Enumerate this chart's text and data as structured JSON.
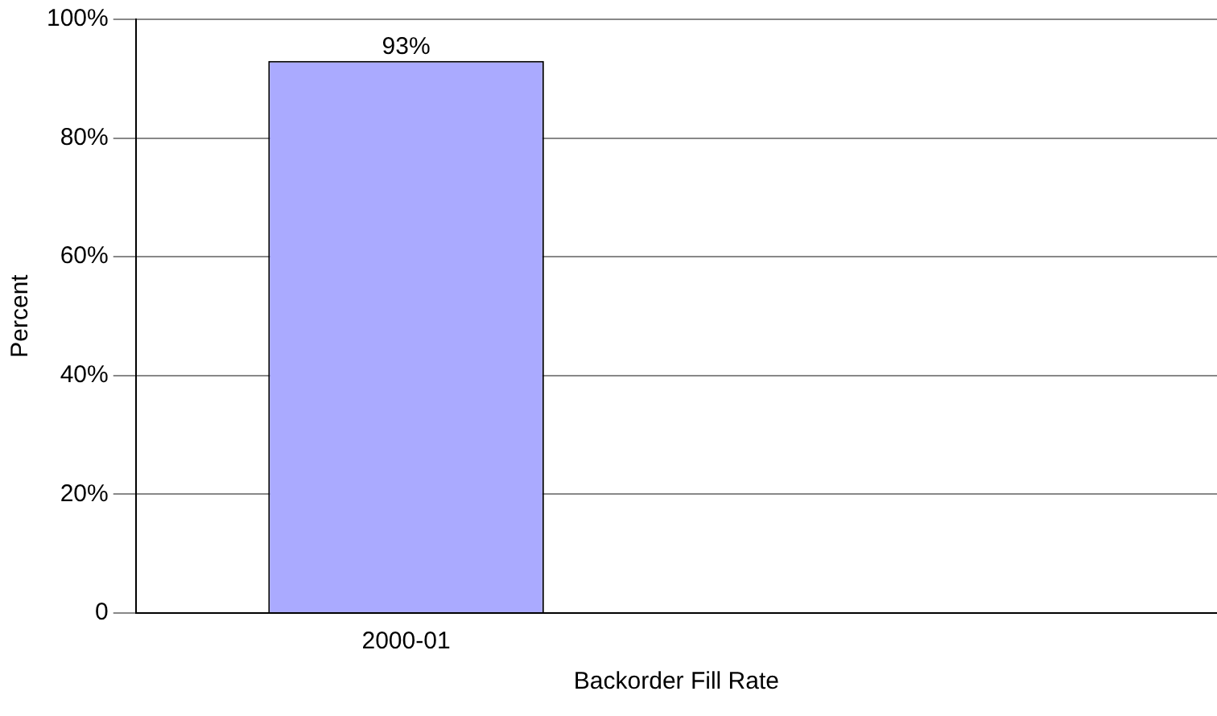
{
  "chart_data": {
    "type": "bar",
    "xlabel": "Backorder Fill Rate",
    "ylabel": "Percent",
    "categories": [
      "2000-01",
      null
    ],
    "series": [
      {
        "color": "#aaaaff",
        "values": [
          93,
          null
        ],
        "value_labels": [
          "93%",
          null
        ]
      }
    ],
    "ylim": [
      0,
      100
    ],
    "yticks": [
      {
        "value": 0,
        "label": "0"
      },
      {
        "value": 20,
        "label": "20%"
      },
      {
        "value": 40,
        "label": "40%"
      },
      {
        "value": 60,
        "label": "60%"
      },
      {
        "value": 80,
        "label": "80%"
      },
      {
        "value": 100,
        "label": "100%"
      }
    ],
    "grid": "y",
    "legend": false
  }
}
